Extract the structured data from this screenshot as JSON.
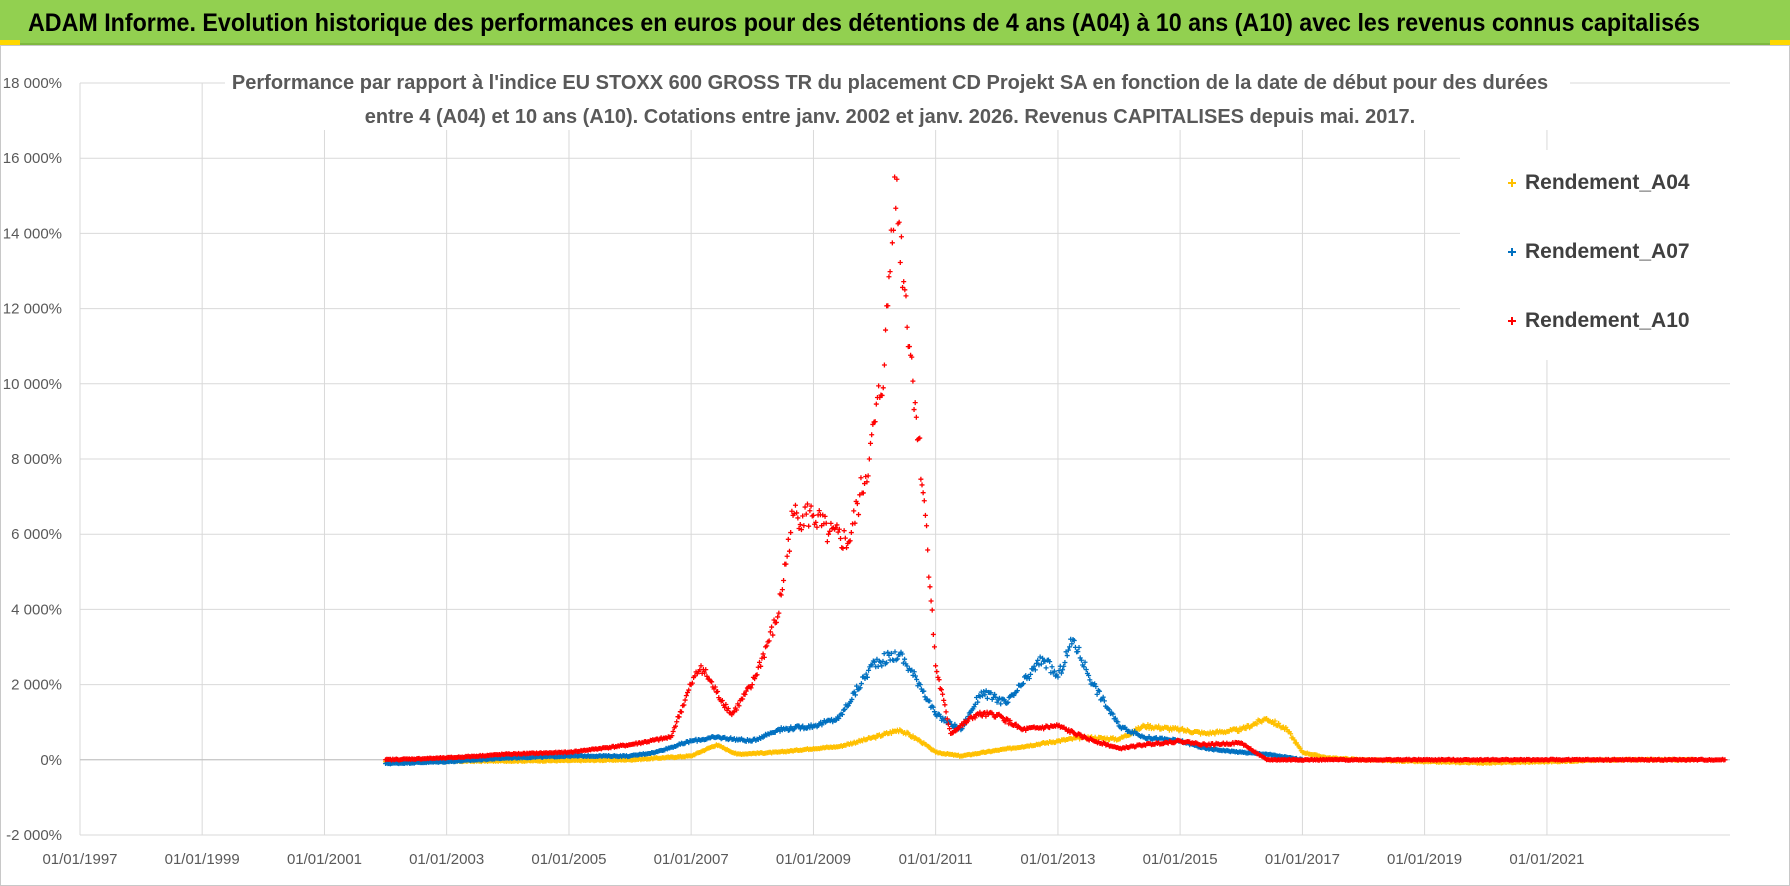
{
  "header": {
    "banner_title": "ADAM Informe. Evolution historique des performances en euros pour des détentions de 4 ans (A04) à 10 ans (A10) avec les revenus connus capitalisés"
  },
  "colors": {
    "banner_bg": "#92d050",
    "series_A04": "#ffc000",
    "series_A07": "#0070c0",
    "series_A10": "#ff0000",
    "grid": "#d9d9d9"
  },
  "chart_data": {
    "type": "scatter",
    "title_lines": [
      "Performance par rapport à l'indice EU STOXX 600 GROSS TR  du placement CD Projekt SA en fonction de la date de début pour des durées",
      "entre 4 (A04) et 10 ans (A10).  Cotations entre janv. 2002 et janv. 2026. Revenus CAPITALISES depuis mai. 2017."
    ],
    "xlabel": "",
    "ylabel": "",
    "x_range": [
      "1997-01-01",
      "2023-12-31"
    ],
    "y_range": [
      -2000,
      18000
    ],
    "y_ticks": [
      -2000,
      0,
      2000,
      4000,
      6000,
      8000,
      10000,
      12000,
      14000,
      16000,
      18000
    ],
    "y_tick_labels": [
      "-2 000%",
      "0%",
      "2 000%",
      "4 000%",
      "6 000%",
      "8 000%",
      "10 000%",
      "12 000%",
      "14 000%",
      "16 000%",
      "18 000%"
    ],
    "x_tick_labels": [
      "01/01/1997",
      "01/01/1999",
      "01/01/2001",
      "01/01/2003",
      "01/01/2005",
      "01/01/2007",
      "01/01/2009",
      "01/01/2011",
      "01/01/2013",
      "01/01/2015",
      "01/01/2017",
      "01/01/2019",
      "01/01/2021"
    ],
    "x_tick_dates": [
      "1997-01-01",
      "1999-01-01",
      "2001-01-01",
      "2003-01-01",
      "2005-01-01",
      "2007-01-01",
      "2009-01-01",
      "2011-01-01",
      "2013-01-01",
      "2015-01-01",
      "2017-01-01",
      "2019-01-01",
      "2021-01-01"
    ],
    "grid": true,
    "legend_position": "top-right",
    "marker": "+",
    "series": [
      {
        "name": "Rendement_A04",
        "color": "#ffc000",
        "points": [
          [
            "2002-01-01",
            -50
          ],
          [
            "2003-01-01",
            -40
          ],
          [
            "2004-01-01",
            -30
          ],
          [
            "2005-01-01",
            -20
          ],
          [
            "2006-01-01",
            0
          ],
          [
            "2007-01-01",
            100
          ],
          [
            "2007-06-01",
            400
          ],
          [
            "2007-10-01",
            150
          ],
          [
            "2008-06-01",
            200
          ],
          [
            "2009-01-01",
            300
          ],
          [
            "2009-06-01",
            350
          ],
          [
            "2010-01-01",
            600
          ],
          [
            "2010-06-01",
            800
          ],
          [
            "2010-10-01",
            500
          ],
          [
            "2011-01-01",
            200
          ],
          [
            "2011-06-01",
            100
          ],
          [
            "2012-01-01",
            250
          ],
          [
            "2012-06-01",
            350
          ],
          [
            "2013-01-01",
            500
          ],
          [
            "2013-06-01",
            600
          ],
          [
            "2014-01-01",
            550
          ],
          [
            "2014-06-01",
            900
          ],
          [
            "2015-01-01",
            800
          ],
          [
            "2015-06-01",
            700
          ],
          [
            "2016-01-01",
            800
          ],
          [
            "2016-06-01",
            1100
          ],
          [
            "2016-10-01",
            800
          ],
          [
            "2017-01-01",
            200
          ],
          [
            "2017-06-01",
            50
          ],
          [
            "2018-01-01",
            0
          ],
          [
            "2019-01-01",
            -50
          ],
          [
            "2020-01-01",
            -80
          ],
          [
            "2021-01-01",
            -50
          ],
          [
            "2022-01-01",
            0
          ],
          [
            "2023-06-01",
            0
          ]
        ]
      },
      {
        "name": "Rendement_A07",
        "color": "#0070c0",
        "points": [
          [
            "2002-01-01",
            -100
          ],
          [
            "2003-01-01",
            -50
          ],
          [
            "2004-01-01",
            50
          ],
          [
            "2005-01-01",
            100
          ],
          [
            "2006-01-01",
            100
          ],
          [
            "2006-06-01",
            200
          ],
          [
            "2007-01-01",
            500
          ],
          [
            "2007-06-01",
            600
          ],
          [
            "2008-01-01",
            500
          ],
          [
            "2008-06-01",
            800
          ],
          [
            "2009-01-01",
            900
          ],
          [
            "2009-06-01",
            1100
          ],
          [
            "2010-01-01",
            2600
          ],
          [
            "2010-06-01",
            2800
          ],
          [
            "2010-10-01",
            2000
          ],
          [
            "2011-01-01",
            1200
          ],
          [
            "2011-06-01",
            800
          ],
          [
            "2011-10-01",
            1800
          ],
          [
            "2012-03-01",
            1500
          ],
          [
            "2012-06-01",
            2000
          ],
          [
            "2012-10-01",
            2700
          ],
          [
            "2013-01-01",
            2200
          ],
          [
            "2013-04-01",
            3200
          ],
          [
            "2013-08-01",
            2000
          ],
          [
            "2014-01-01",
            900
          ],
          [
            "2014-06-01",
            600
          ],
          [
            "2015-01-01",
            500
          ],
          [
            "2015-06-01",
            300
          ],
          [
            "2016-01-01",
            200
          ],
          [
            "2016-06-01",
            150
          ],
          [
            "2017-01-01",
            0
          ]
        ]
      },
      {
        "name": "Rendement_A10",
        "color": "#ff0000",
        "points": [
          [
            "2002-01-01",
            0
          ],
          [
            "2003-01-01",
            50
          ],
          [
            "2004-01-01",
            150
          ],
          [
            "2005-01-01",
            200
          ],
          [
            "2006-01-01",
            400
          ],
          [
            "2006-09-01",
            600
          ],
          [
            "2007-01-01",
            2000
          ],
          [
            "2007-03-01",
            2500
          ],
          [
            "2007-06-01",
            1800
          ],
          [
            "2007-09-01",
            1200
          ],
          [
            "2008-01-01",
            2000
          ],
          [
            "2008-06-01",
            3800
          ],
          [
            "2008-09-01",
            6500
          ],
          [
            "2009-01-01",
            6500
          ],
          [
            "2009-04-01",
            6000
          ],
          [
            "2009-08-01",
            5800
          ],
          [
            "2009-12-01",
            8000
          ],
          [
            "2010-03-01",
            10500
          ],
          [
            "2010-05-01",
            15500
          ],
          [
            "2010-07-01",
            12500
          ],
          [
            "2010-09-01",
            9500
          ],
          [
            "2010-11-01",
            6500
          ],
          [
            "2011-01-01",
            2500
          ],
          [
            "2011-04-01",
            700
          ],
          [
            "2011-09-01",
            1200
          ],
          [
            "2012-01-01",
            1200
          ],
          [
            "2012-06-01",
            800
          ],
          [
            "2013-01-01",
            900
          ],
          [
            "2013-06-01",
            600
          ],
          [
            "2014-01-01",
            300
          ],
          [
            "2014-06-01",
            400
          ],
          [
            "2015-01-01",
            500
          ],
          [
            "2015-06-01",
            400
          ],
          [
            "2016-01-01",
            450
          ],
          [
            "2016-06-01",
            0
          ],
          [
            "2018-01-01",
            0
          ],
          [
            "2020-01-01",
            0
          ],
          [
            "2023-12-01",
            0
          ]
        ]
      }
    ]
  }
}
